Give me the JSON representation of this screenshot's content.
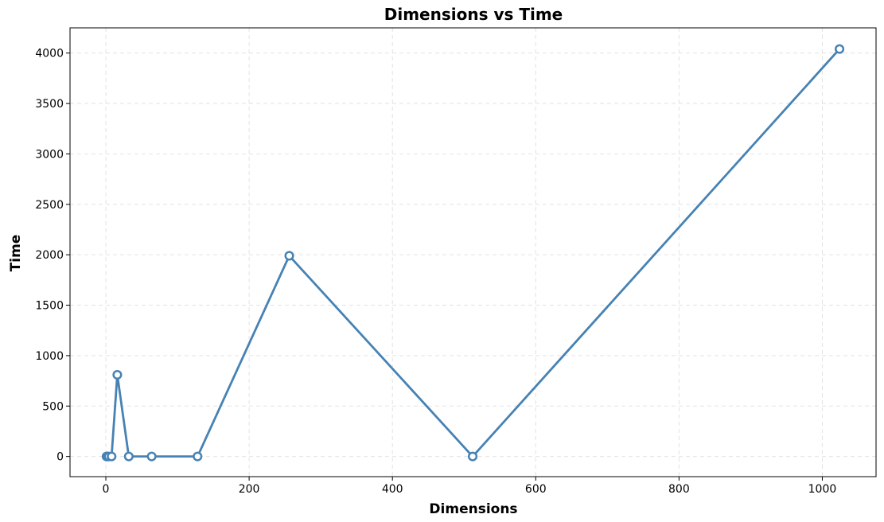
{
  "chart_data": {
    "type": "line",
    "title": "Dimensions vs Time",
    "xlabel": "Dimensions",
    "ylabel": "Time",
    "xlim": [
      -50,
      1075
    ],
    "ylim": [
      -200,
      4250
    ],
    "xticks": [
      0,
      200,
      400,
      600,
      800,
      1000
    ],
    "yticks": [
      0,
      500,
      1000,
      1500,
      2000,
      2500,
      3000,
      3500,
      4000
    ],
    "grid": true,
    "series": [
      {
        "color": "#4682b4",
        "marker": "circle-open",
        "points": [
          {
            "x": 1,
            "y": 0
          },
          {
            "x": 2,
            "y": 0
          },
          {
            "x": 4,
            "y": 0
          },
          {
            "x": 8,
            "y": 0
          },
          {
            "x": 16,
            "y": 810
          },
          {
            "x": 32,
            "y": 0
          },
          {
            "x": 64,
            "y": 0
          },
          {
            "x": 128,
            "y": 0
          },
          {
            "x": 256,
            "y": 1990
          },
          {
            "x": 512,
            "y": 0
          },
          {
            "x": 1024,
            "y": 4040
          }
        ]
      }
    ]
  }
}
